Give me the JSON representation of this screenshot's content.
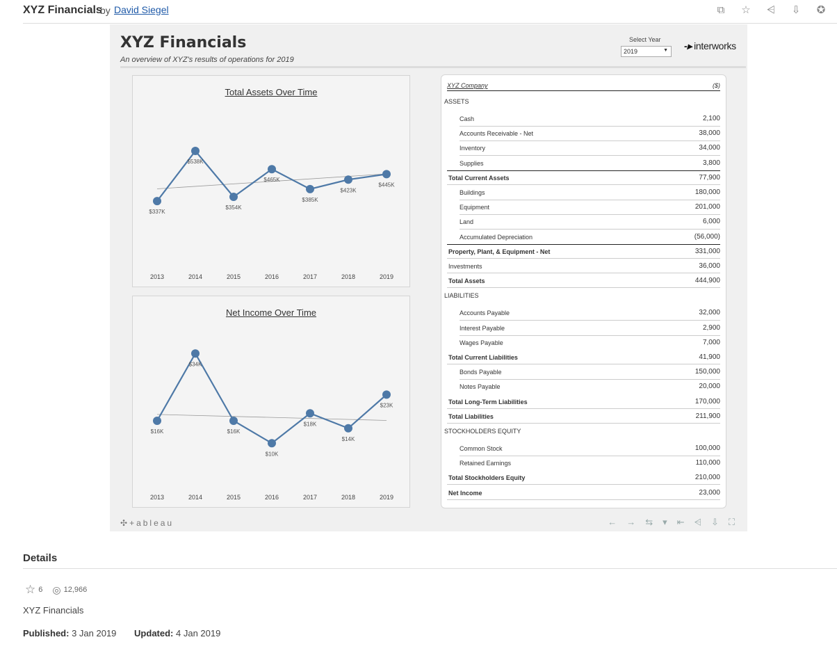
{
  "header": {
    "title": "XYZ Financials",
    "by": "by",
    "author": "David Siegel",
    "icons": [
      "copy-icon",
      "star-icon",
      "share-icon",
      "download-icon",
      "badge-icon"
    ]
  },
  "viz": {
    "title": "XYZ Financials",
    "subtitle": "An overview of XYZ's results of operations for 2019",
    "select_label": "Select Year",
    "select_value": "2019",
    "logo_text": "interworks",
    "tableau_logo": "+ableau",
    "toolbar_icons": [
      "undo-icon",
      "redo-icon",
      "revert-icon",
      "revert-dropdown-icon",
      "reset-icon",
      "share-icon",
      "download-icon",
      "fullscreen-icon"
    ]
  },
  "chart_data": [
    {
      "type": "line",
      "title": "Total Assets Over Time",
      "x": [
        "2013",
        "2014",
        "2015",
        "2016",
        "2017",
        "2018",
        "2019"
      ],
      "values": [
        337,
        538,
        354,
        465,
        385,
        423,
        445
      ],
      "labels": [
        "$337K",
        "$538K",
        "$354K",
        "$465K",
        "$385K",
        "$423K",
        "$445K"
      ],
      "trendline": [
        386,
        446
      ],
      "ylim": [
        100,
        700
      ],
      "color": "#4e79a7"
    },
    {
      "type": "line",
      "title": "Net Income Over Time",
      "x": [
        "2013",
        "2014",
        "2015",
        "2016",
        "2017",
        "2018",
        "2019"
      ],
      "values": [
        16,
        34,
        16,
        10,
        18,
        14,
        23
      ],
      "labels": [
        "$16K",
        "$34K",
        "$16K",
        "$10K",
        "$18K",
        "$14K",
        "$23K"
      ],
      "trendline": [
        17.7,
        16.1
      ],
      "ylim": [
        0,
        40
      ],
      "color": "#4e79a7"
    }
  ],
  "balance_sheet": {
    "company": "XYZ Company",
    "unit": "($)",
    "rows": [
      {
        "label": "ASSETS",
        "kind": "section"
      },
      {
        "label": "Cash",
        "value": "2,100",
        "kind": "item"
      },
      {
        "label": "Accounts Receivable - Net",
        "value": "38,000",
        "kind": "item"
      },
      {
        "label": "Inventory",
        "value": "34,000",
        "kind": "item"
      },
      {
        "label": "Supplies",
        "value": "3,800",
        "kind": "item",
        "line_after": true
      },
      {
        "label": "Total Current Assets",
        "value": "77,900",
        "kind": "total"
      },
      {
        "label": "Buildings",
        "value": "180,000",
        "kind": "item"
      },
      {
        "label": "Equipment",
        "value": "201,000",
        "kind": "item"
      },
      {
        "label": "Land",
        "value": "6,000",
        "kind": "item"
      },
      {
        "label": "Accumulated Depreciation",
        "value": "(56,000)",
        "kind": "item",
        "line_after": true
      },
      {
        "label": "Property, Plant, & Equipment - Net",
        "value": "331,000",
        "kind": "total"
      },
      {
        "label": "Investments",
        "value": "36,000",
        "kind": "sub"
      },
      {
        "label": "Total Assets",
        "value": "444,900",
        "kind": "total"
      },
      {
        "label": "LIABILITIES",
        "kind": "section"
      },
      {
        "label": "Accounts Payable",
        "value": "32,000",
        "kind": "item"
      },
      {
        "label": "Interest Payable",
        "value": "2,900",
        "kind": "item"
      },
      {
        "label": "Wages Payable",
        "value": "7,000",
        "kind": "item"
      },
      {
        "label": "Total Current Liabilities",
        "value": "41,900",
        "kind": "total"
      },
      {
        "label": "Bonds Payable",
        "value": "150,000",
        "kind": "item"
      },
      {
        "label": "Notes Payable",
        "value": "20,000",
        "kind": "item"
      },
      {
        "label": "Total Long-Term Liabilities",
        "value": "170,000",
        "kind": "total"
      },
      {
        "label": "Total Liabilities",
        "value": "211,900",
        "kind": "total"
      },
      {
        "label": "STOCKHOLDERS EQUITY",
        "kind": "section"
      },
      {
        "label": "Common Stock",
        "value": "100,000",
        "kind": "item"
      },
      {
        "label": "Retained Earnings",
        "value": "110,000",
        "kind": "item"
      },
      {
        "label": "Total Stockholders Equity",
        "value": "210,000",
        "kind": "total"
      },
      {
        "label": "Net Income",
        "value": "23,000",
        "kind": "total"
      }
    ]
  },
  "details": {
    "heading": "Details",
    "favorites": "6",
    "views": "12,966",
    "name": "XYZ Financials",
    "published_label": "Published:",
    "published": "3 Jan 2019",
    "updated_label": "Updated:",
    "updated": "4 Jan 2019"
  }
}
